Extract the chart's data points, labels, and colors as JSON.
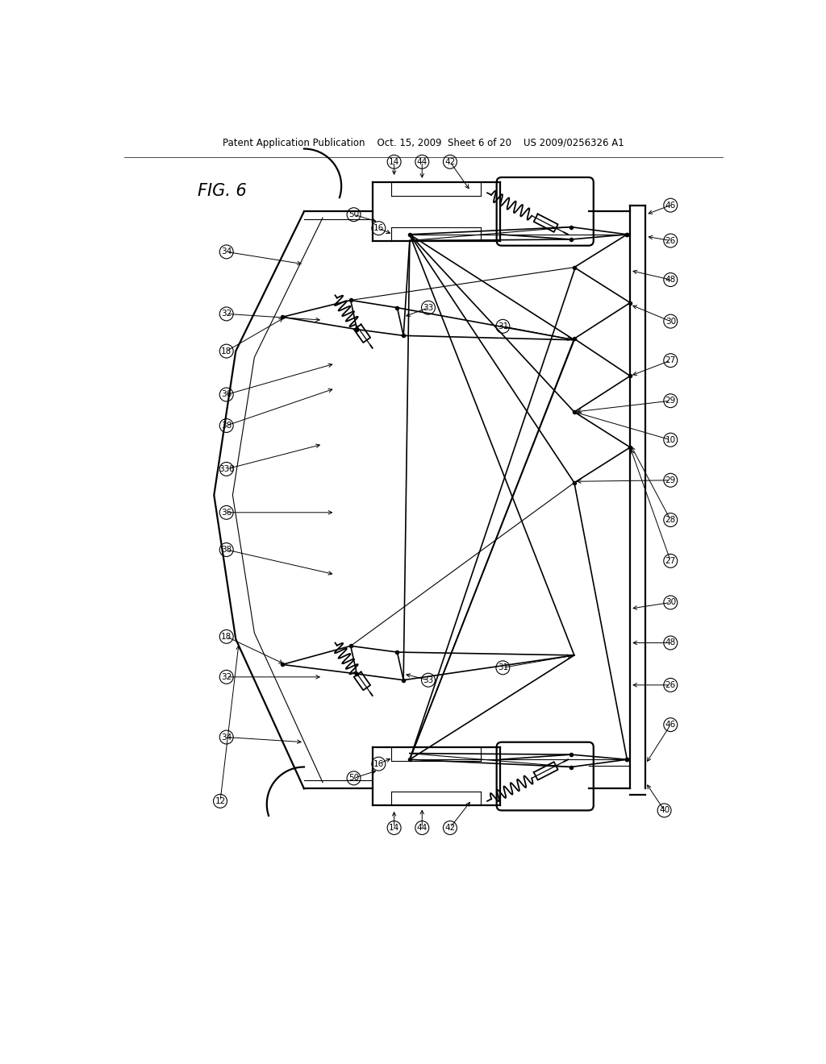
{
  "header": "Patent Application Publication    Oct. 15, 2009  Sheet 6 of 20    US 2009/0256326 A1",
  "fig_label": "FIG. 6",
  "bg_color": "#ffffff",
  "lc": "#000000"
}
